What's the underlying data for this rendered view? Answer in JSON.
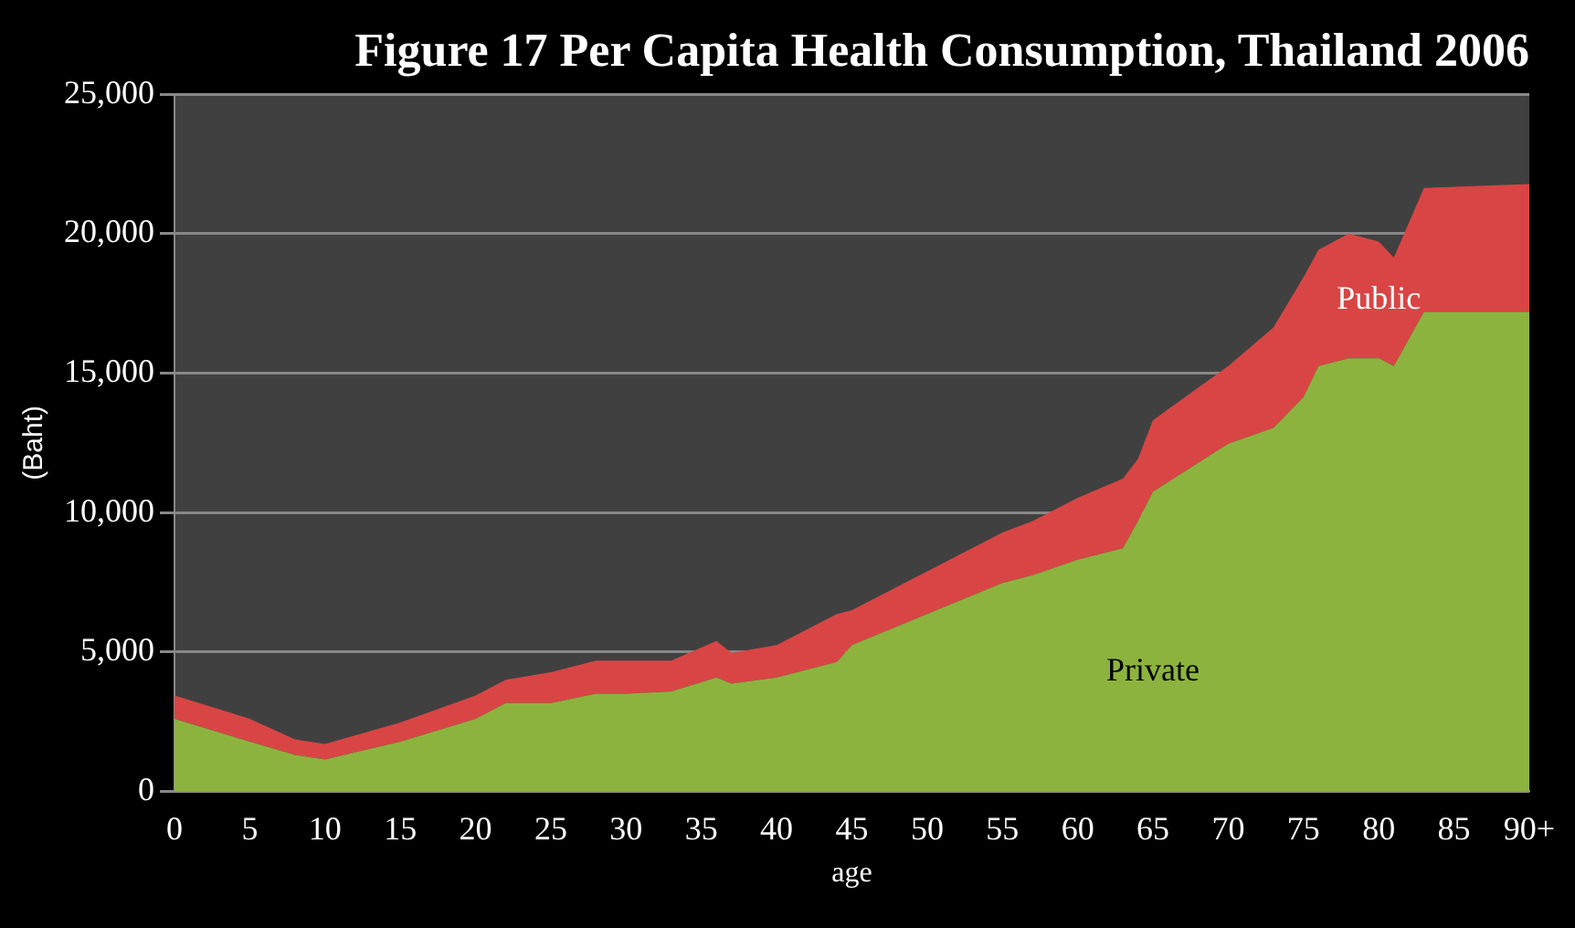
{
  "chart_data": {
    "type": "area",
    "stacked": true,
    "title": "Figure 17 Per Capita Health Consumption, Thailand 2006",
    "xlabel": "age",
    "ylabel": "(Baht)",
    "x": [
      0,
      5,
      8,
      10,
      15,
      20,
      22,
      25,
      28,
      30,
      33,
      36,
      37,
      40,
      44,
      45,
      50,
      55,
      57,
      60,
      63,
      64,
      65,
      70,
      73,
      75,
      76,
      78,
      80,
      81,
      83,
      90
    ],
    "series": [
      {
        "name": "Private",
        "color": "#8db33f",
        "values": [
          2600,
          1780,
          1310,
          1140,
          1780,
          2600,
          3170,
          3170,
          3500,
          3500,
          3580,
          4080,
          3860,
          4080,
          4640,
          5250,
          6360,
          7470,
          7750,
          8310,
          8720,
          9690,
          10750,
          12470,
          13030,
          14140,
          15250,
          15530,
          15530,
          15250,
          17190,
          17190
        ]
      },
      {
        "name": "Public",
        "color": "#d94545",
        "values": [
          840,
          820,
          550,
          560,
          690,
          840,
          830,
          1100,
          1190,
          1190,
          1110,
          1310,
          1110,
          1170,
          1720,
          1250,
          1530,
          1810,
          1940,
          2220,
          2500,
          2230,
          2560,
          2780,
          3610,
          4300,
          4170,
          4470,
          4190,
          3890,
          4450,
          4590
        ]
      }
    ],
    "xlim": [
      0,
      90
    ],
    "xticks": [
      0,
      5,
      10,
      15,
      20,
      25,
      30,
      35,
      40,
      45,
      50,
      55,
      60,
      65,
      70,
      75,
      80,
      85,
      {
        "value": 90,
        "label": "90+"
      }
    ],
    "ylim": [
      0,
      25000
    ],
    "yticks": [
      0,
      {
        "value": 5000,
        "label": "5,000"
      },
      {
        "value": 10000,
        "label": "10,000"
      },
      {
        "value": 15000,
        "label": "15,000"
      },
      {
        "value": 20000,
        "label": "20,000"
      },
      {
        "value": 25000,
        "label": "25,000"
      }
    ],
    "grid": "y",
    "legend": false
  }
}
